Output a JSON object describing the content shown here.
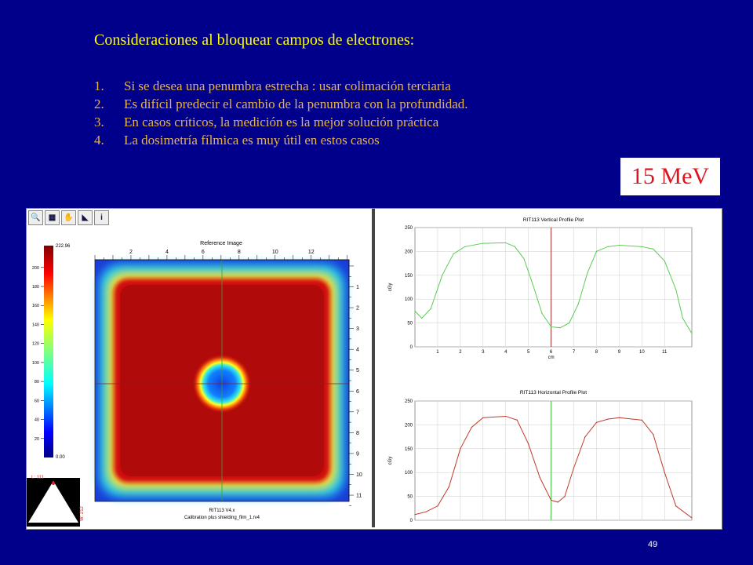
{
  "slide": {
    "title": "Consideraciones al bloquear campos de electrones:",
    "items": [
      {
        "num": "1.",
        "text": "Si se desea una penumbra estrecha : usar colimación terciaria"
      },
      {
        "num": "2.",
        "text": "Es difícil predecir el cambio de la penumbra con la profundidad."
      },
      {
        "num": "3.",
        "text": "En casos críticos, la medición es la mejor solución práctica"
      },
      {
        "num": "4.",
        "text": "La dosimetría fílmica es muy útil en estos casos"
      }
    ],
    "energy_badge": "15 MeV",
    "page_number": "49"
  },
  "toolbar": {
    "buttons": [
      {
        "icon": "zoom-icon",
        "glyph": "🔍"
      },
      {
        "icon": "grid-icon",
        "glyph": "▦"
      },
      {
        "icon": "pan-hand-icon",
        "glyph": "✋"
      },
      {
        "icon": "plot-icon",
        "glyph": "◣"
      },
      {
        "icon": "info-icon",
        "glyph": "i"
      }
    ]
  },
  "colorbar": {
    "max_label": "222.96",
    "min_label": "0.00",
    "ticks": [
      "200",
      "180",
      "160",
      "140",
      "120",
      "100",
      "80",
      "60",
      "40",
      "20"
    ],
    "tick_values": [
      200,
      180,
      160,
      140,
      120,
      100,
      80,
      60,
      40,
      20
    ],
    "max": 222.96
  },
  "image": {
    "title": "Reference Image",
    "top_ticks": [
      "2",
      "4",
      "6",
      "8",
      "10",
      "12"
    ],
    "right_ticks": [
      "1",
      "2",
      "3",
      "4",
      "5",
      "6",
      "7",
      "8",
      "9",
      "10",
      "11"
    ],
    "caption1": "RIT113 V4.x",
    "caption2": "Calibration plus shielding_film_1.rv4"
  },
  "window_level": {
    "level_label": "L: 111",
    "width_label": "W: 212"
  },
  "chart_data": [
    {
      "type": "line",
      "title": "RIT113 Vertical Profile Plot",
      "xlabel": "cm",
      "ylabel": "cGy",
      "xlim": [
        0,
        12.2
      ],
      "ylim": [
        0,
        250
      ],
      "x_ticks": [
        "1",
        "2",
        "3",
        "4",
        "5",
        "6",
        "7",
        "8",
        "9",
        "10",
        "11"
      ],
      "y_ticks": [
        "0",
        "50",
        "100",
        "150",
        "200",
        "250"
      ],
      "marker_x": 6,
      "color": "#5ccc55",
      "x": [
        0,
        0.3,
        0.7,
        1.2,
        1.7,
        2.2,
        3,
        4,
        4.4,
        4.8,
        5.2,
        5.6,
        6,
        6.4,
        6.8,
        7.2,
        7.6,
        8,
        8.5,
        9,
        10,
        10.5,
        11,
        11.5,
        11.8,
        12.2
      ],
      "series": [
        {
          "values": [
            75,
            60,
            80,
            150,
            195,
            210,
            217,
            218,
            210,
            185,
            130,
            70,
            42,
            40,
            50,
            90,
            155,
            200,
            210,
            213,
            210,
            205,
            180,
            120,
            60,
            28
          ]
        }
      ]
    },
    {
      "type": "line",
      "title": "RIT113 Horizontal Profile Plot",
      "xlabel": "",
      "ylabel": "cGy",
      "xlim": [
        0,
        12.2
      ],
      "ylim": [
        0,
        250
      ],
      "x_ticks": [],
      "y_ticks": [
        "0",
        "50",
        "100",
        "150",
        "200",
        "250"
      ],
      "marker_x": 6,
      "color": "#c0392b",
      "x": [
        0,
        0.5,
        1,
        1.5,
        2,
        2.5,
        3,
        4,
        4.5,
        5,
        5.5,
        6,
        6.3,
        6.6,
        7,
        7.5,
        8,
        8.5,
        9,
        10,
        10.5,
        11,
        11.5,
        12.2
      ],
      "series": [
        {
          "values": [
            12,
            18,
            30,
            70,
            150,
            195,
            215,
            218,
            210,
            160,
            90,
            42,
            38,
            50,
            110,
            175,
            205,
            212,
            215,
            210,
            180,
            100,
            30,
            5
          ]
        }
      ]
    }
  ]
}
